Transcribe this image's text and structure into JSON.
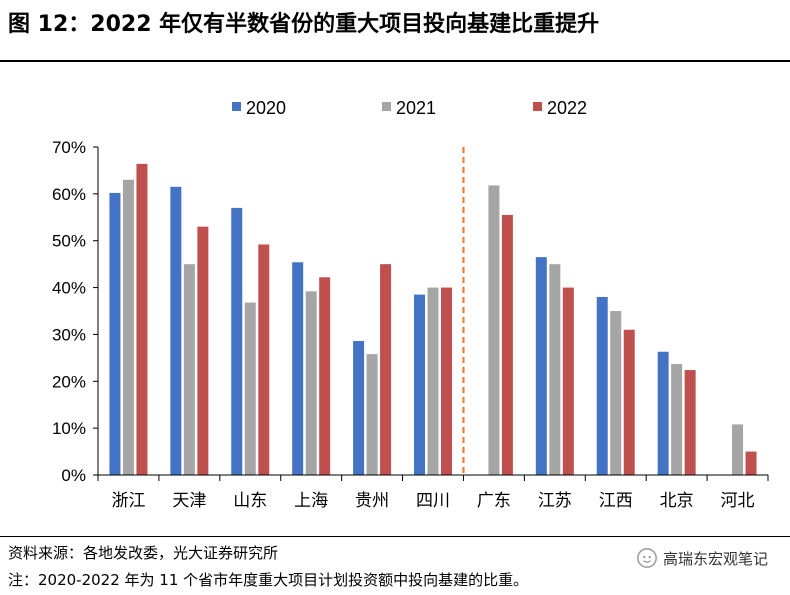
{
  "title": "图 12：2022 年仅有半数省份的重大项目投向基建比重提升",
  "source": "资料来源：各地发改委，光大证券研究所",
  "note": "注：2020-2022 年为 11 个省市年度重大项目计划投资额中投向基建的比重。",
  "watermark": "高瑞东宏观笔记",
  "chart_data": {
    "type": "bar",
    "categories": [
      "浙江",
      "天津",
      "山东",
      "上海",
      "贵州",
      "四川",
      "广东",
      "江苏",
      "江西",
      "北京",
      "河北"
    ],
    "series": [
      {
        "name": "2020",
        "color": "#4472C4",
        "values": [
          60.2,
          61.5,
          57.0,
          45.4,
          28.6,
          38.5,
          null,
          46.5,
          38.0,
          26.3,
          null
        ]
      },
      {
        "name": "2021",
        "color": "#A5A5A5",
        "values": [
          63.0,
          45.0,
          36.8,
          39.2,
          25.8,
          40.0,
          61.8,
          45.0,
          35.0,
          23.7,
          10.8
        ]
      },
      {
        "name": "2022",
        "color": "#C0504D",
        "values": [
          66.4,
          53.0,
          49.2,
          42.2,
          45.0,
          40.0,
          55.5,
          40.0,
          31.0,
          22.4,
          5.0
        ]
      }
    ],
    "yticks": [
      "0%",
      "10%",
      "20%",
      "30%",
      "40%",
      "50%",
      "60%",
      "70%"
    ],
    "ylim": [
      0,
      70
    ],
    "legend_position": "top",
    "divider": {
      "after_category": "四川",
      "style": "dashed",
      "color": "#ED7D31"
    }
  }
}
